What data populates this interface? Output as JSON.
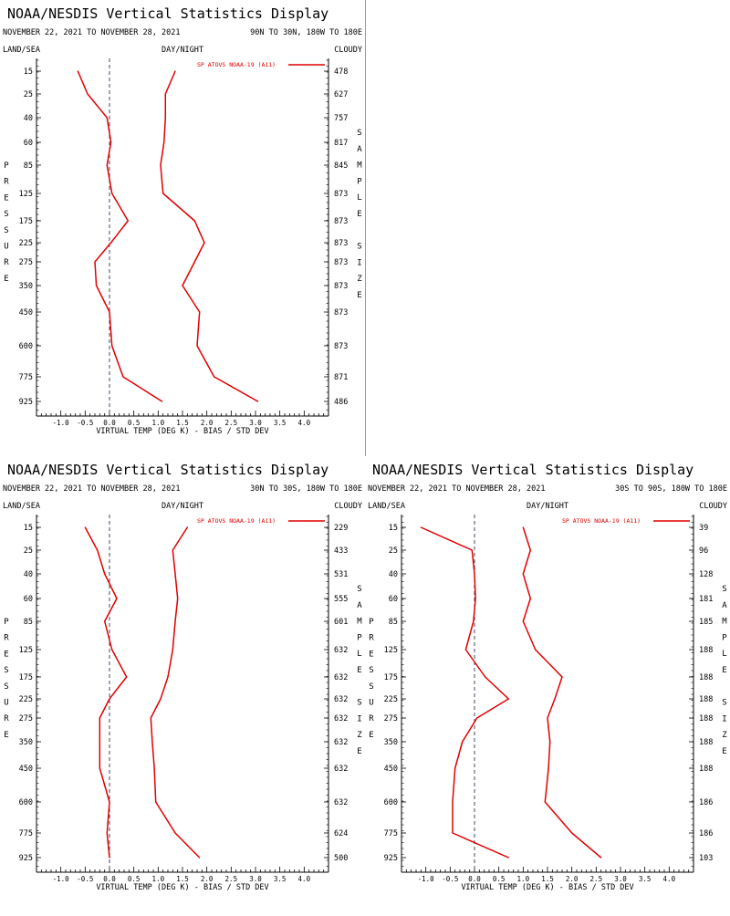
{
  "colors": {
    "series": "#e00000",
    "axis": "#000000",
    "zero_line": "#444466",
    "divider": "#999999"
  },
  "chart_data": [
    {
      "type": "line",
      "title": "NOAA/NESDIS Vertical Statistics Display",
      "date_range": "NOVEMBER 22, 2021 TO NOVEMBER 28, 2021",
      "region": "90N TO 30N, 180W TO 180E",
      "land_sea": "LAND/SEA",
      "day_night": "DAY/NIGHT",
      "cloudy": "CLOUDY",
      "ylabel": "PRESSURE",
      "y2label": "SAMPLE SIZE",
      "xlabel": "VIRTUAL TEMP (DEG K) - BIAS / STD DEV",
      "legend": "SP ATOVS NOAA-19 (A11)",
      "xlim": [
        -1.5,
        4.5
      ],
      "xticks": [
        "-1.0",
        "-0.5",
        "0.0",
        "0.5",
        "1.0",
        "1.5",
        "2.0",
        "2.5",
        "3.0",
        "3.5",
        "4.0"
      ],
      "xtick_values": [
        -1.0,
        -0.5,
        0.0,
        0.5,
        1.0,
        1.5,
        2.0,
        2.5,
        3.0,
        3.5,
        4.0
      ],
      "pressure": [
        "15",
        "25",
        "40",
        "60",
        "85",
        "125",
        "175",
        "225",
        "275",
        "350",
        "450",
        "600",
        "775",
        "925"
      ],
      "sample_size": [
        "478",
        "627",
        "757",
        "817",
        "845",
        "873",
        "873",
        "873",
        "873",
        "873",
        "873",
        "873",
        "871",
        "486"
      ],
      "series": [
        {
          "values": [
            -0.65,
            -0.45,
            -0.05,
            0.03,
            -0.05,
            0.05,
            0.38,
            0.03,
            -0.3,
            -0.27,
            0.0,
            0.05,
            0.28,
            1.08
          ]
        },
        {
          "values": [
            1.35,
            1.15,
            1.15,
            1.12,
            1.05,
            1.1,
            1.75,
            1.95,
            1.75,
            1.5,
            1.85,
            1.8,
            2.15,
            3.05
          ]
        }
      ]
    },
    {
      "type": "line",
      "title": "NOAA/NESDIS Vertical Statistics Display",
      "date_range": "NOVEMBER 22, 2021 TO NOVEMBER 28, 2021",
      "region": "30N TO 30S, 180W TO 180E",
      "land_sea": "LAND/SEA",
      "day_night": "DAY/NIGHT",
      "cloudy": "CLOUDY",
      "ylabel": "PRESSURE",
      "y2label": "SAMPLE SIZE",
      "xlabel": "VIRTUAL TEMP (DEG K) - BIAS / STD DEV",
      "legend": "SP ATOVS NOAA-19 (A11)",
      "xlim": [
        -1.5,
        4.5
      ],
      "xticks": [
        "-1.0",
        "-0.5",
        "0.0",
        "0.5",
        "1.0",
        "1.5",
        "2.0",
        "2.5",
        "3.0",
        "3.5",
        "4.0"
      ],
      "xtick_values": [
        -1.0,
        -0.5,
        0.0,
        0.5,
        1.0,
        1.5,
        2.0,
        2.5,
        3.0,
        3.5,
        4.0
      ],
      "pressure": [
        "15",
        "25",
        "40",
        "60",
        "85",
        "125",
        "175",
        "225",
        "275",
        "350",
        "450",
        "600",
        "775",
        "925"
      ],
      "sample_size": [
        "229",
        "433",
        "531",
        "555",
        "601",
        "632",
        "632",
        "632",
        "632",
        "632",
        "632",
        "632",
        "624",
        "500"
      ],
      "series": [
        {
          "values": [
            -0.5,
            -0.25,
            -0.1,
            0.15,
            -0.1,
            0.05,
            0.35,
            0.0,
            -0.2,
            -0.2,
            -0.2,
            0.0,
            -0.05,
            0.0
          ]
        },
        {
          "values": [
            1.6,
            1.3,
            1.35,
            1.4,
            1.35,
            1.3,
            1.2,
            1.05,
            0.85,
            0.88,
            0.92,
            0.95,
            1.35,
            1.85
          ]
        }
      ]
    },
    {
      "type": "line",
      "title": "NOAA/NESDIS Vertical Statistics Display",
      "date_range": "NOVEMBER 22, 2021 TO NOVEMBER 28, 2021",
      "region": "30S TO 90S, 180W TO 180E",
      "land_sea": "LAND/SEA",
      "day_night": "DAY/NIGHT",
      "cloudy": "CLOUDY",
      "ylabel": "PRESSURE",
      "y2label": "SAMPLE SIZE",
      "xlabel": "VIRTUAL TEMP (DEG K) - BIAS / STD DEV",
      "legend": "SP ATOVS NOAA-19 (A11)",
      "xlim": [
        -1.5,
        4.5
      ],
      "xticks": [
        "-1.0",
        "-0.5",
        "0.0",
        "0.5",
        "1.0",
        "1.5",
        "2.0",
        "2.5",
        "3.0",
        "3.5",
        "4.0"
      ],
      "xtick_values": [
        -1.0,
        -0.5,
        0.0,
        0.5,
        1.0,
        1.5,
        2.0,
        2.5,
        3.0,
        3.5,
        4.0
      ],
      "pressure": [
        "15",
        "25",
        "40",
        "60",
        "85",
        "125",
        "175",
        "225",
        "275",
        "350",
        "450",
        "600",
        "775",
        "925"
      ],
      "sample_size": [
        "39",
        "96",
        "128",
        "181",
        "185",
        "188",
        "188",
        "188",
        "188",
        "188",
        "188",
        "186",
        "186",
        "103"
      ],
      "series": [
        {
          "values": [
            -1.1,
            -0.05,
            0.0,
            0.02,
            -0.02,
            -0.18,
            0.22,
            0.7,
            0.05,
            -0.25,
            -0.4,
            -0.45,
            -0.45,
            0.7
          ]
        },
        {
          "values": [
            1.0,
            1.15,
            1.0,
            1.15,
            1.0,
            1.25,
            1.8,
            1.65,
            1.5,
            1.55,
            1.52,
            1.45,
            2.0,
            2.6
          ]
        }
      ]
    }
  ]
}
